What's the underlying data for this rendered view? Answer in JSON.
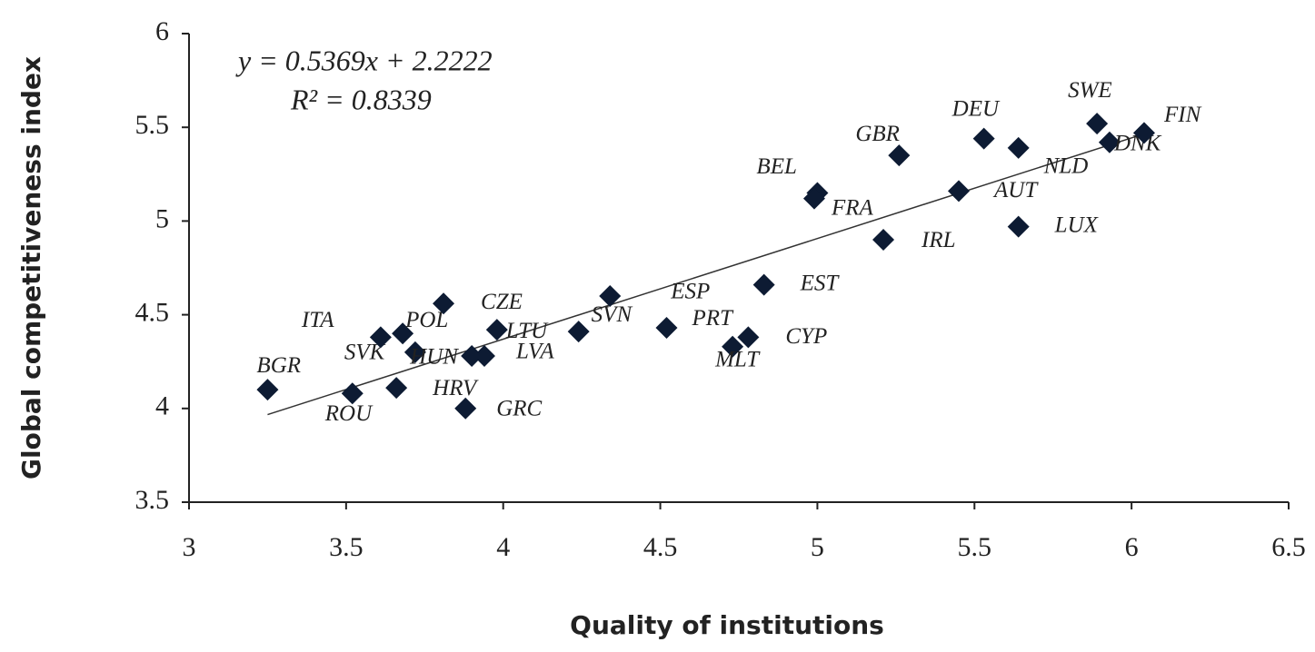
{
  "chart_data": {
    "type": "scatter",
    "xlabel": "Quality of institutions",
    "ylabel": "Global competitiveness index",
    "annotations": [
      "y = 0.5369x + 2.2222",
      "R² = 0.8339"
    ],
    "trendline": {
      "slope": 0.5369,
      "intercept": 2.2222,
      "x": [
        3.25,
        6.05
      ]
    },
    "labels": [
      "BGR",
      "ROU",
      "HRV",
      "GRC",
      "SVK",
      "ITA",
      "POL",
      "CZE",
      "HUN",
      "LVA",
      "LTU",
      "SVN",
      "ESP",
      "PRT",
      "MLT",
      "CYP",
      "EST",
      "BEL",
      "FRA",
      "IRL",
      "GBR",
      "AUT",
      "DEU",
      "NLD",
      "LUX",
      "SWE",
      "DNK",
      "FIN"
    ],
    "x": [
      3.25,
      3.52,
      3.66,
      3.88,
      3.72,
      3.61,
      3.68,
      3.81,
      3.9,
      3.94,
      3.98,
      4.24,
      4.34,
      4.52,
      4.73,
      4.78,
      4.83,
      5.0,
      4.99,
      5.21,
      5.26,
      5.45,
      5.53,
      5.64,
      5.64,
      5.89,
      5.93,
      6.04
    ],
    "values": [
      4.1,
      4.08,
      4.11,
      4.0,
      4.3,
      4.38,
      4.4,
      4.56,
      4.28,
      4.28,
      4.42,
      4.41,
      4.6,
      4.43,
      4.33,
      4.38,
      4.66,
      5.15,
      5.12,
      4.9,
      5.35,
      5.16,
      5.44,
      5.39,
      4.97,
      5.52,
      5.42,
      5.47
    ],
    "color": "#0d1b33",
    "xlim": [
      3,
      6.5
    ],
    "xticks": [
      3,
      3.5,
      4,
      4.5,
      5,
      5.5,
      6,
      6.5
    ],
    "ylim": [
      3.5,
      6
    ],
    "yticks": [
      3.5,
      4,
      4.5,
      5,
      5.5,
      6
    ],
    "grid": false
  }
}
